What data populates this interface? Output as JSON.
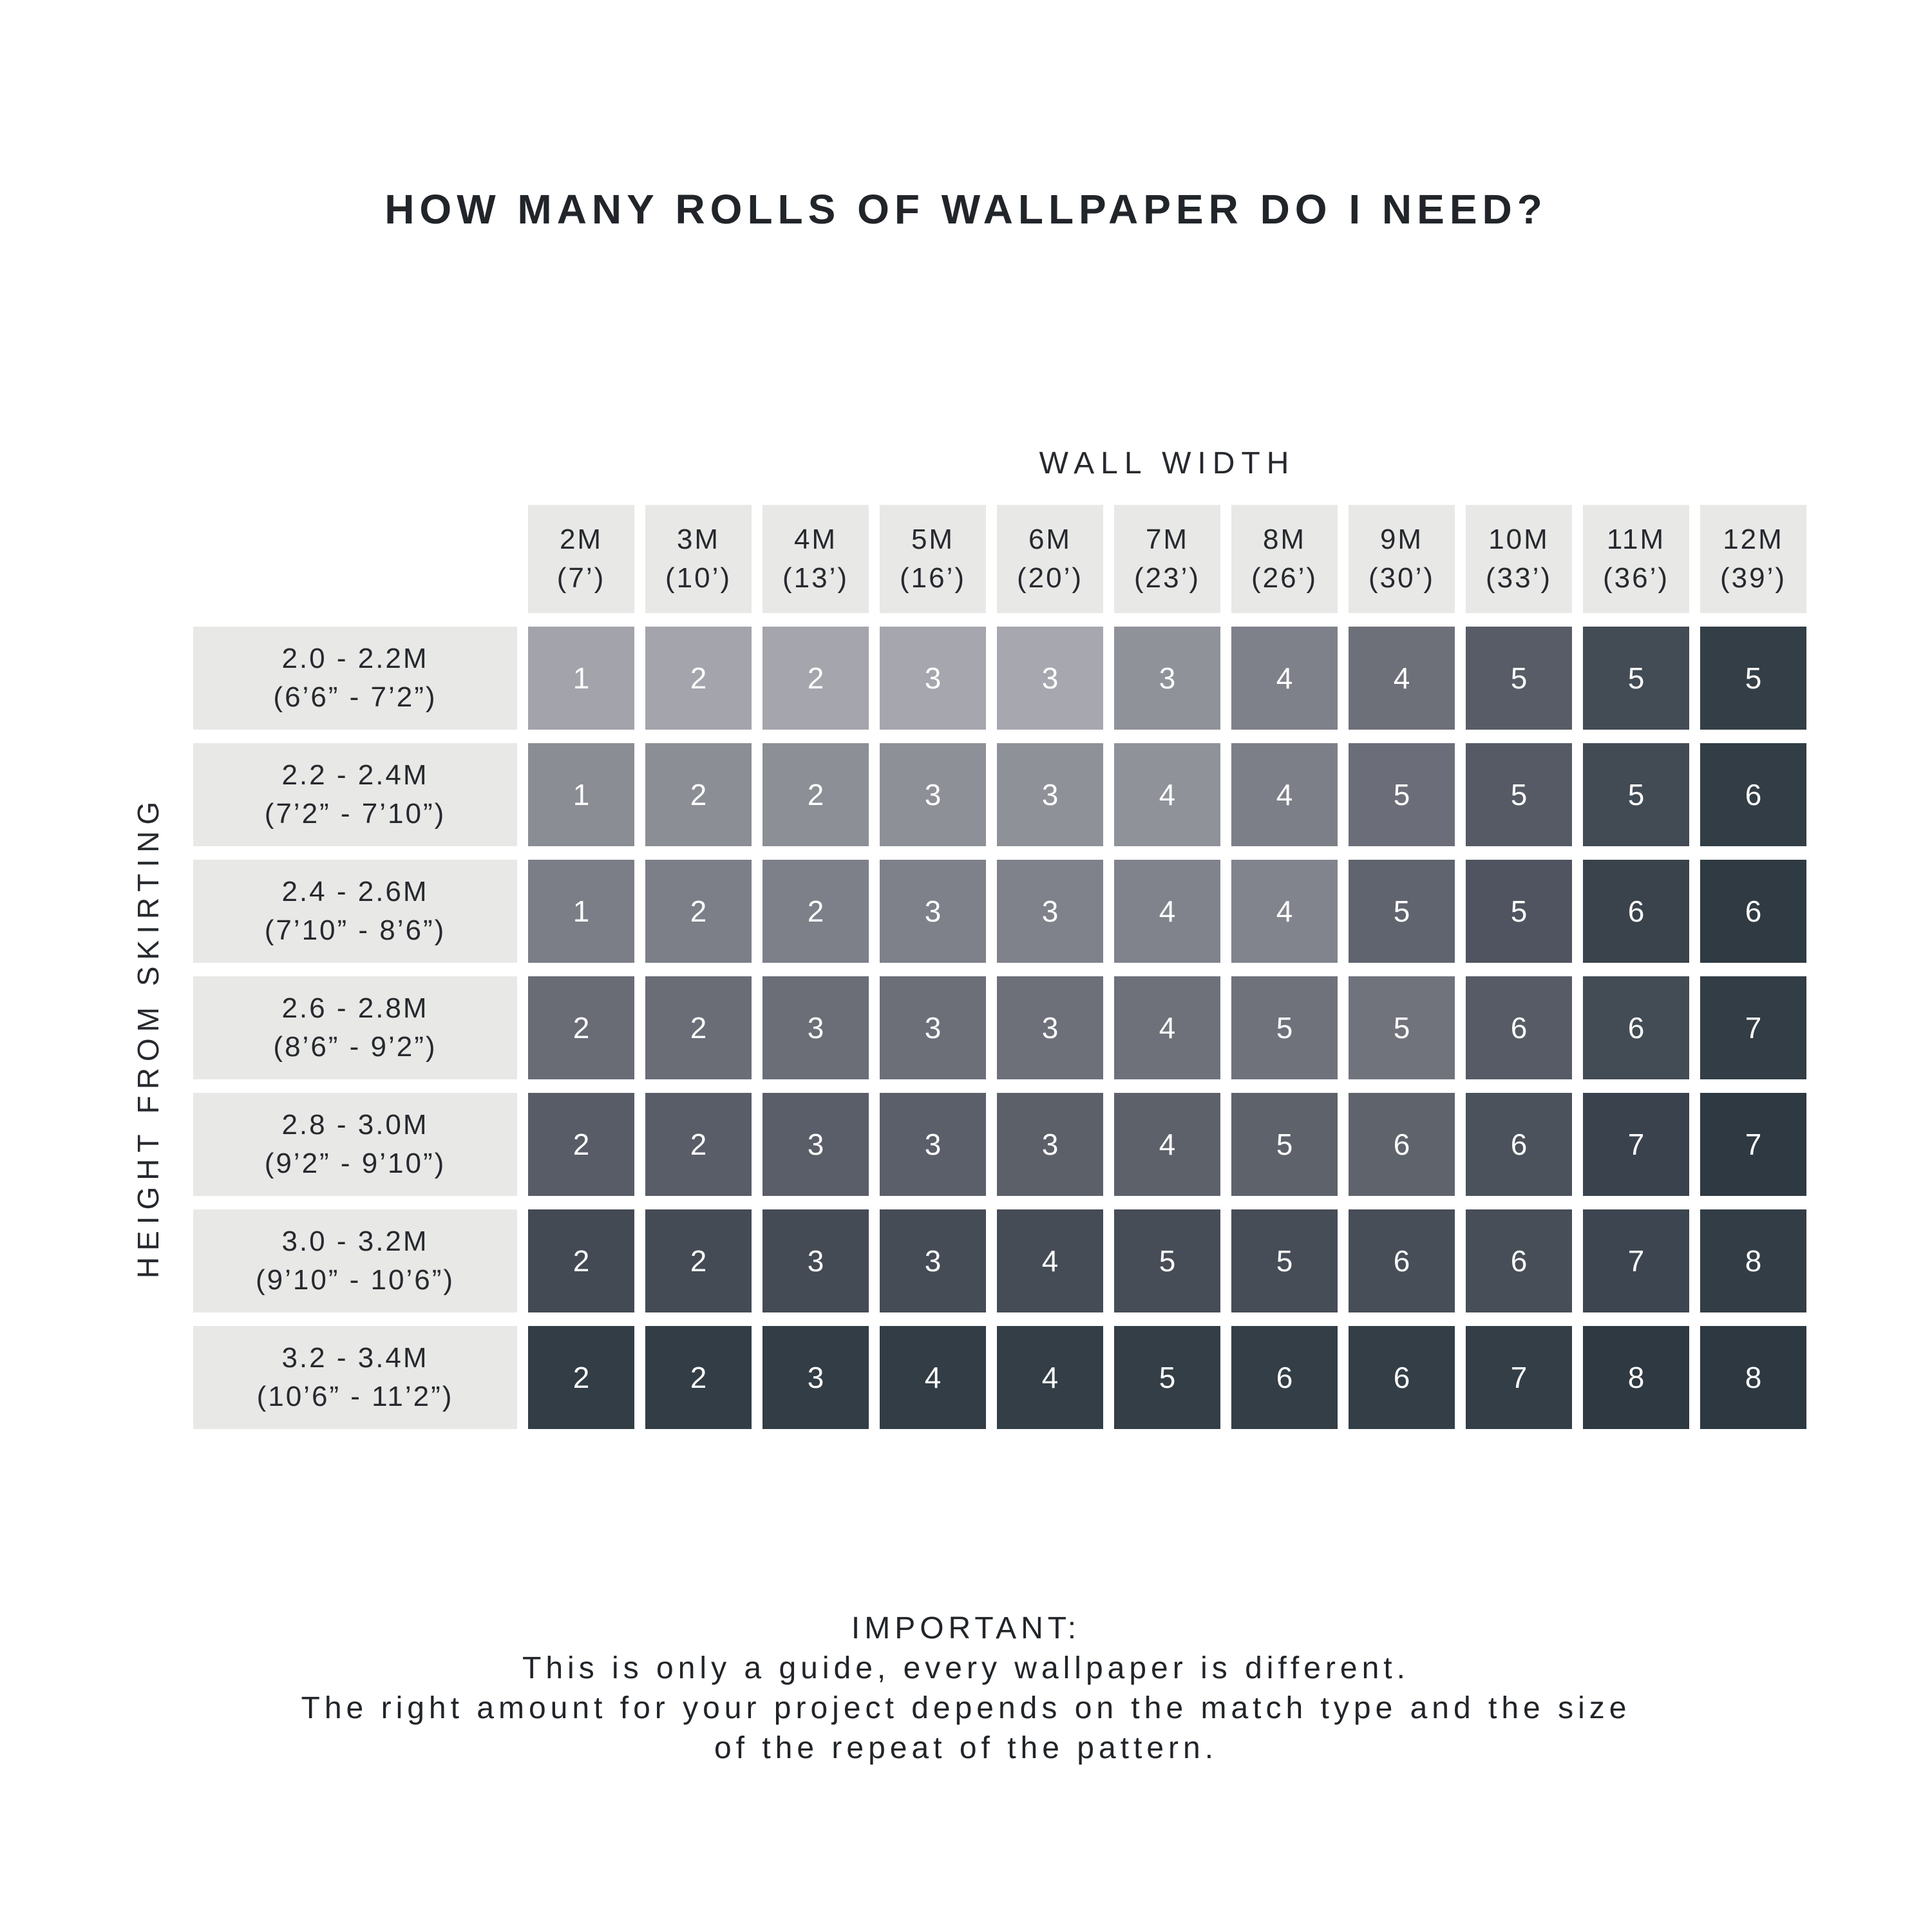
{
  "title": "HOW MANY ROLLS OF WALLPAPER DO I NEED?",
  "palette": {
    "page_bg": "#ffffff",
    "header_bg": "#e8e8e6",
    "label_text": "#26292e",
    "cell_text": "#ffffff",
    "gradient_light": "#a7a7af",
    "gradient_dark": "#2d3841"
  },
  "chart_data": {
    "type": "heatmap",
    "title": "HOW MANY ROLLS OF WALLPAPER DO I NEED?",
    "x_axis_label": "WALL WIDTH",
    "y_axis_label": "HEIGHT FROM SKIRTING",
    "legend": "none",
    "grid": "off",
    "columns": [
      {
        "m": "2M",
        "ft": "(7’)"
      },
      {
        "m": "3M",
        "ft": "(10’)"
      },
      {
        "m": "4M",
        "ft": "(13’)"
      },
      {
        "m": "5M",
        "ft": "(16’)"
      },
      {
        "m": "6M",
        "ft": "(20’)"
      },
      {
        "m": "7M",
        "ft": "(23’)"
      },
      {
        "m": "8M",
        "ft": "(26’)"
      },
      {
        "m": "9M",
        "ft": "(30’)"
      },
      {
        "m": "10M",
        "ft": "(33’)"
      },
      {
        "m": "11M",
        "ft": "(36’)"
      },
      {
        "m": "12M",
        "ft": "(39’)"
      }
    ],
    "rows": [
      {
        "m": "2.0 - 2.2M",
        "ft": "(6’6” - 7’2”)"
      },
      {
        "m": "2.2 - 2.4M",
        "ft": "(7’2” - 7’10”)"
      },
      {
        "m": "2.4 - 2.6M",
        "ft": "(7’10” - 8’6”)"
      },
      {
        "m": "2.6 - 2.8M",
        "ft": "(8’6” - 9’2”)"
      },
      {
        "m": "2.8 - 3.0M",
        "ft": "(9’2” - 9’10”)"
      },
      {
        "m": "3.0 - 3.2M",
        "ft": "(9’10” - 10’6”)"
      },
      {
        "m": "3.2 - 3.4M",
        "ft": "(10’6” - 11’2”)"
      }
    ],
    "values": [
      [
        1,
        2,
        2,
        3,
        3,
        3,
        4,
        4,
        5,
        5,
        5
      ],
      [
        1,
        2,
        2,
        3,
        3,
        4,
        4,
        5,
        5,
        5,
        6
      ],
      [
        1,
        2,
        2,
        3,
        3,
        4,
        4,
        5,
        5,
        6,
        6
      ],
      [
        2,
        2,
        3,
        3,
        3,
        4,
        5,
        5,
        6,
        6,
        7
      ],
      [
        2,
        2,
        3,
        3,
        3,
        4,
        5,
        6,
        6,
        7,
        7
      ],
      [
        2,
        2,
        3,
        3,
        4,
        5,
        5,
        6,
        6,
        7,
        8
      ],
      [
        2,
        2,
        3,
        4,
        4,
        5,
        6,
        6,
        7,
        8,
        8
      ]
    ],
    "cell_colors": [
      [
        "#a3a3ab",
        "#a4a4ac",
        "#a5a5ad",
        "#a6a6ae",
        "#a7a7af",
        "#90929a",
        "#7e808a",
        "#6e7079",
        "#575c66",
        "#434b55",
        "#333e46"
      ],
      [
        "#8b8d94",
        "#8c8e95",
        "#8d8f96",
        "#8e9097",
        "#8f9198",
        "#90929a",
        "#7d7f88",
        "#6b6d78",
        "#555a65",
        "#424a54",
        "#323d45"
      ],
      [
        "#7b7e86",
        "#7c7f87",
        "#7d8088",
        "#7e8189",
        "#7f828a",
        "#80838b",
        "#81848c",
        "#5f646e",
        "#4f5460",
        "#3a434c",
        "#2f3a42"
      ],
      [
        "#696c75",
        "#6a6d76",
        "#6b6e77",
        "#6c6f78",
        "#6d7079",
        "#6e717a",
        "#6f727b",
        "#70737c",
        "#565b65",
        "#434b54",
        "#323d45"
      ],
      [
        "#585c66",
        "#595d67",
        "#5a5e68",
        "#5b5f69",
        "#5c6069",
        "#5d616a",
        "#5e626b",
        "#5f636c",
        "#4c525c",
        "#3a434d",
        "#2e3942"
      ],
      [
        "#434a54",
        "#444b55",
        "#444b55",
        "#454c56",
        "#454c56",
        "#464d57",
        "#464d57",
        "#474e58",
        "#474e58",
        "#3d4650",
        "#333d45"
      ],
      [
        "#323d45",
        "#323d45",
        "#323d45",
        "#323d45",
        "#333e46",
        "#333e46",
        "#333e46",
        "#333e46",
        "#333e46",
        "#2e3941",
        "#2d3841"
      ]
    ]
  },
  "footer": {
    "heading": "IMPORTANT:",
    "lines": [
      "This is only a guide, every wallpaper is different.",
      "The right amount for your project depends on the match type and the size",
      "of the repeat of the pattern."
    ]
  }
}
